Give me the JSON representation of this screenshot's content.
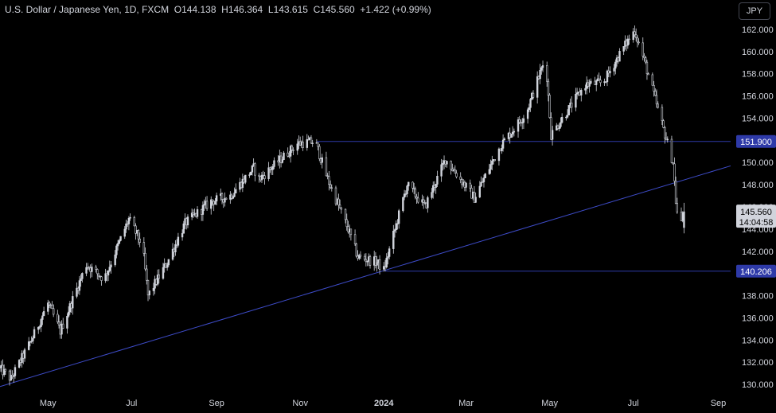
{
  "header": {
    "symbol": "U.S. Dollar / Japanese Yen, 1D, FXCM",
    "open": "O144.138",
    "high": "H146.364",
    "low": "L143.615",
    "close": "C145.560",
    "change": "+1.422 (+0.99%)"
  },
  "currency_button": "JPY",
  "price_label": {
    "price": "145.560",
    "countdown": "14:04:58"
  },
  "levels": [
    {
      "value": 151.9,
      "label": "151.900"
    },
    {
      "value": 140.206,
      "label": "140.206"
    }
  ],
  "colors": {
    "background": "#000000",
    "candle": "#d1d4dc",
    "level_line": "#2e3aa8",
    "trend_line": "#3d4bc7",
    "level_label_bg": "#2e3aa8",
    "price_label_bg": "#d1d4dc"
  },
  "chart_data": {
    "type": "candlestick",
    "title": "U.S. Dollar / Japanese Yen, 1D, FXCM",
    "x_ticks": [
      "May",
      "Jul",
      "Sep",
      "Nov",
      "2024",
      "Mar",
      "May",
      "Jul",
      "Sep"
    ],
    "y_ticks": [
      "130.000",
      "132.000",
      "134.000",
      "136.000",
      "138.000",
      "140.000",
      "142.000",
      "144.000",
      "146.000",
      "148.000",
      "150.000",
      "152.000",
      "154.000",
      "156.000",
      "158.000",
      "160.000",
      "162.000"
    ],
    "ylim": [
      129.5,
      162.5
    ],
    "x_range": [
      "2023-03-27",
      "2024-09-10"
    ],
    "trend_line": {
      "from": {
        "date": "2023-03-27",
        "value": 129.8
      },
      "to": {
        "date": "2024-09-10",
        "value": 149.7
      }
    },
    "horizontal_lines": [
      {
        "value": 151.9,
        "from_date": "2023-11-13"
      },
      {
        "value": 140.206,
        "from_date": "2024-01-02"
      }
    ],
    "last_candle": {
      "open": 144.138,
      "high": 146.364,
      "low": 143.615,
      "close": 145.56
    },
    "price_path": [
      {
        "date": "2023-03-27",
        "value": 131.5
      },
      {
        "date": "2023-04-05",
        "value": 130.5
      },
      {
        "date": "2023-04-20",
        "value": 134.0
      },
      {
        "date": "2023-05-02",
        "value": 137.3
      },
      {
        "date": "2023-05-11",
        "value": 134.8
      },
      {
        "date": "2023-05-30",
        "value": 140.8
      },
      {
        "date": "2023-06-12",
        "value": 139.5
      },
      {
        "date": "2023-06-30",
        "value": 144.9
      },
      {
        "date": "2023-07-10",
        "value": 142.5
      },
      {
        "date": "2023-07-14",
        "value": 138.0
      },
      {
        "date": "2023-07-28",
        "value": 141.0
      },
      {
        "date": "2023-08-10",
        "value": 144.5
      },
      {
        "date": "2023-08-29",
        "value": 146.5
      },
      {
        "date": "2023-09-12",
        "value": 147.0
      },
      {
        "date": "2023-09-29",
        "value": 149.5
      },
      {
        "date": "2023-10-03",
        "value": 148.5
      },
      {
        "date": "2023-10-31",
        "value": 151.7
      },
      {
        "date": "2023-11-13",
        "value": 151.9
      },
      {
        "date": "2023-11-22",
        "value": 148.5
      },
      {
        "date": "2023-12-07",
        "value": 144.0
      },
      {
        "date": "2023-12-14",
        "value": 141.5
      },
      {
        "date": "2023-12-28",
        "value": 141.0
      },
      {
        "date": "2024-01-02",
        "value": 140.3
      },
      {
        "date": "2024-01-19",
        "value": 148.0
      },
      {
        "date": "2024-02-01",
        "value": 146.0
      },
      {
        "date": "2024-02-16",
        "value": 150.3
      },
      {
        "date": "2024-03-08",
        "value": 146.8
      },
      {
        "date": "2024-03-27",
        "value": 151.5
      },
      {
        "date": "2024-04-15",
        "value": 154.5
      },
      {
        "date": "2024-04-29",
        "value": 159.5
      },
      {
        "date": "2024-05-03",
        "value": 152.5
      },
      {
        "date": "2024-05-28",
        "value": 157.0
      },
      {
        "date": "2024-06-10",
        "value": 157.2
      },
      {
        "date": "2024-06-27",
        "value": 160.8
      },
      {
        "date": "2024-07-03",
        "value": 161.9
      },
      {
        "date": "2024-07-11",
        "value": 158.8
      },
      {
        "date": "2024-07-24",
        "value": 153.0
      },
      {
        "date": "2024-07-31",
        "value": 150.0
      },
      {
        "date": "2024-08-02",
        "value": 146.5
      },
      {
        "date": "2024-08-05",
        "value": 143.5
      },
      {
        "date": "2024-08-07",
        "value": 145.5
      }
    ]
  }
}
